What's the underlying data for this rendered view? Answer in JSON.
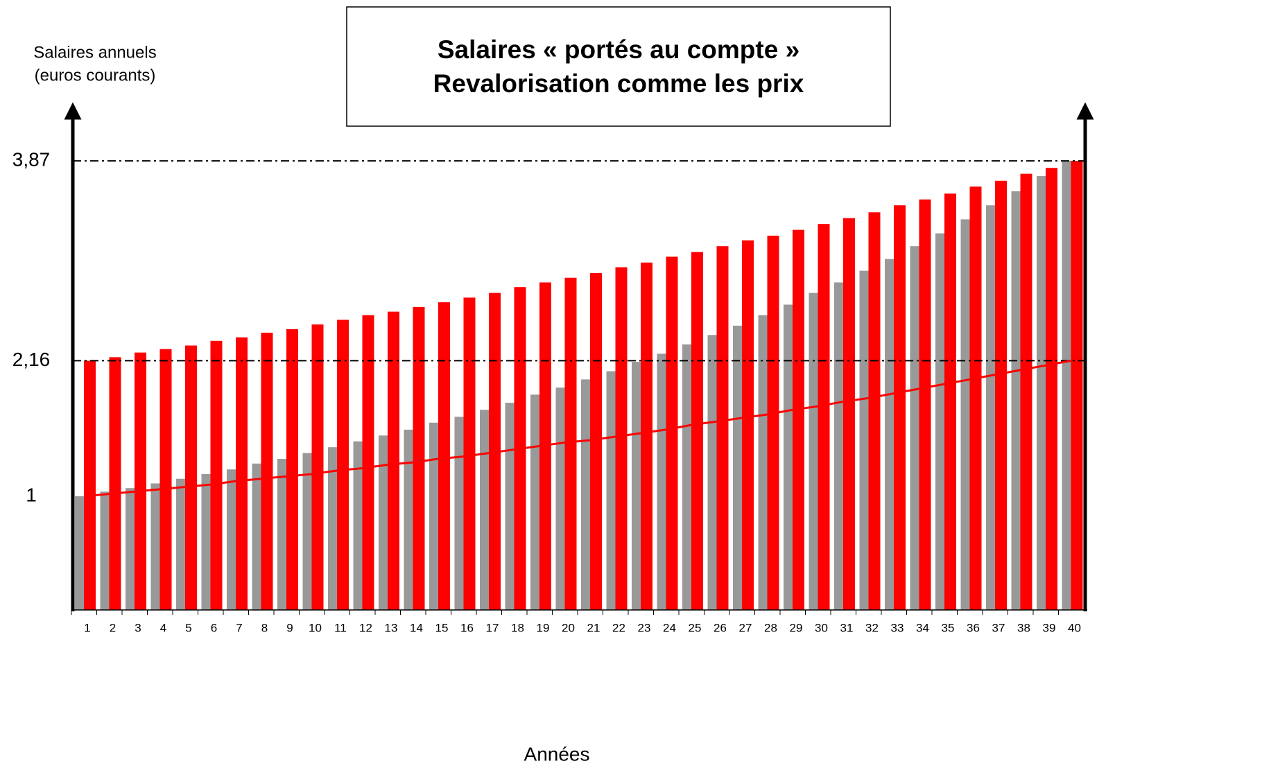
{
  "chart_data": {
    "type": "bar",
    "title": [
      "Salaires « portés au compte »",
      "Revalorisation comme les prix"
    ],
    "y_label": [
      "Salaires annuels",
      "(euros courants)"
    ],
    "x_label": "Années",
    "categories": [
      "1",
      "2",
      "3",
      "4",
      "5",
      "6",
      "7",
      "8",
      "9",
      "10",
      "11",
      "12",
      "13",
      "14",
      "15",
      "16",
      "17",
      "18",
      "19",
      "20",
      "21",
      "22",
      "23",
      "24",
      "25",
      "26",
      "27",
      "28",
      "29",
      "30",
      "31",
      "32",
      "33",
      "34",
      "35",
      "36",
      "37",
      "38",
      "39",
      "40"
    ],
    "series": [
      {
        "type": "bar",
        "color": "#999999",
        "values": [
          1.0,
          1.04,
          1.07,
          1.11,
          1.15,
          1.19,
          1.23,
          1.28,
          1.32,
          1.37,
          1.42,
          1.47,
          1.52,
          1.57,
          1.63,
          1.68,
          1.74,
          1.8,
          1.87,
          1.93,
          2.0,
          2.07,
          2.15,
          2.22,
          2.3,
          2.38,
          2.46,
          2.55,
          2.64,
          2.74,
          2.83,
          2.93,
          3.03,
          3.14,
          3.25,
          3.37,
          3.49,
          3.61,
          3.74,
          3.87
        ]
      },
      {
        "type": "bar",
        "color": "#ff0000",
        "values": [
          2.16,
          2.19,
          2.23,
          2.26,
          2.29,
          2.33,
          2.36,
          2.4,
          2.43,
          2.47,
          2.51,
          2.55,
          2.58,
          2.62,
          2.66,
          2.7,
          2.74,
          2.79,
          2.83,
          2.87,
          2.91,
          2.96,
          3.0,
          3.05,
          3.09,
          3.14,
          3.19,
          3.23,
          3.28,
          3.33,
          3.38,
          3.43,
          3.49,
          3.54,
          3.59,
          3.65,
          3.7,
          3.76,
          3.81,
          3.87
        ]
      },
      {
        "type": "line",
        "color": "#ff0000",
        "values": [
          1.0,
          1.02,
          1.04,
          1.06,
          1.08,
          1.1,
          1.13,
          1.15,
          1.17,
          1.19,
          1.22,
          1.24,
          1.27,
          1.29,
          1.32,
          1.34,
          1.37,
          1.4,
          1.43,
          1.46,
          1.48,
          1.51,
          1.54,
          1.57,
          1.61,
          1.64,
          1.67,
          1.7,
          1.74,
          1.77,
          1.81,
          1.84,
          1.88,
          1.92,
          1.96,
          2.0,
          2.04,
          2.08,
          2.12,
          2.16
        ]
      }
    ],
    "ylim": [
      0,
      4.3
    ],
    "yticks": [
      1,
      {
        "value": 2.16,
        "label": "2,16"
      },
      {
        "value": 3.87,
        "label": "3,87"
      }
    ],
    "reference_lines": [
      2.16,
      3.87
    ]
  }
}
